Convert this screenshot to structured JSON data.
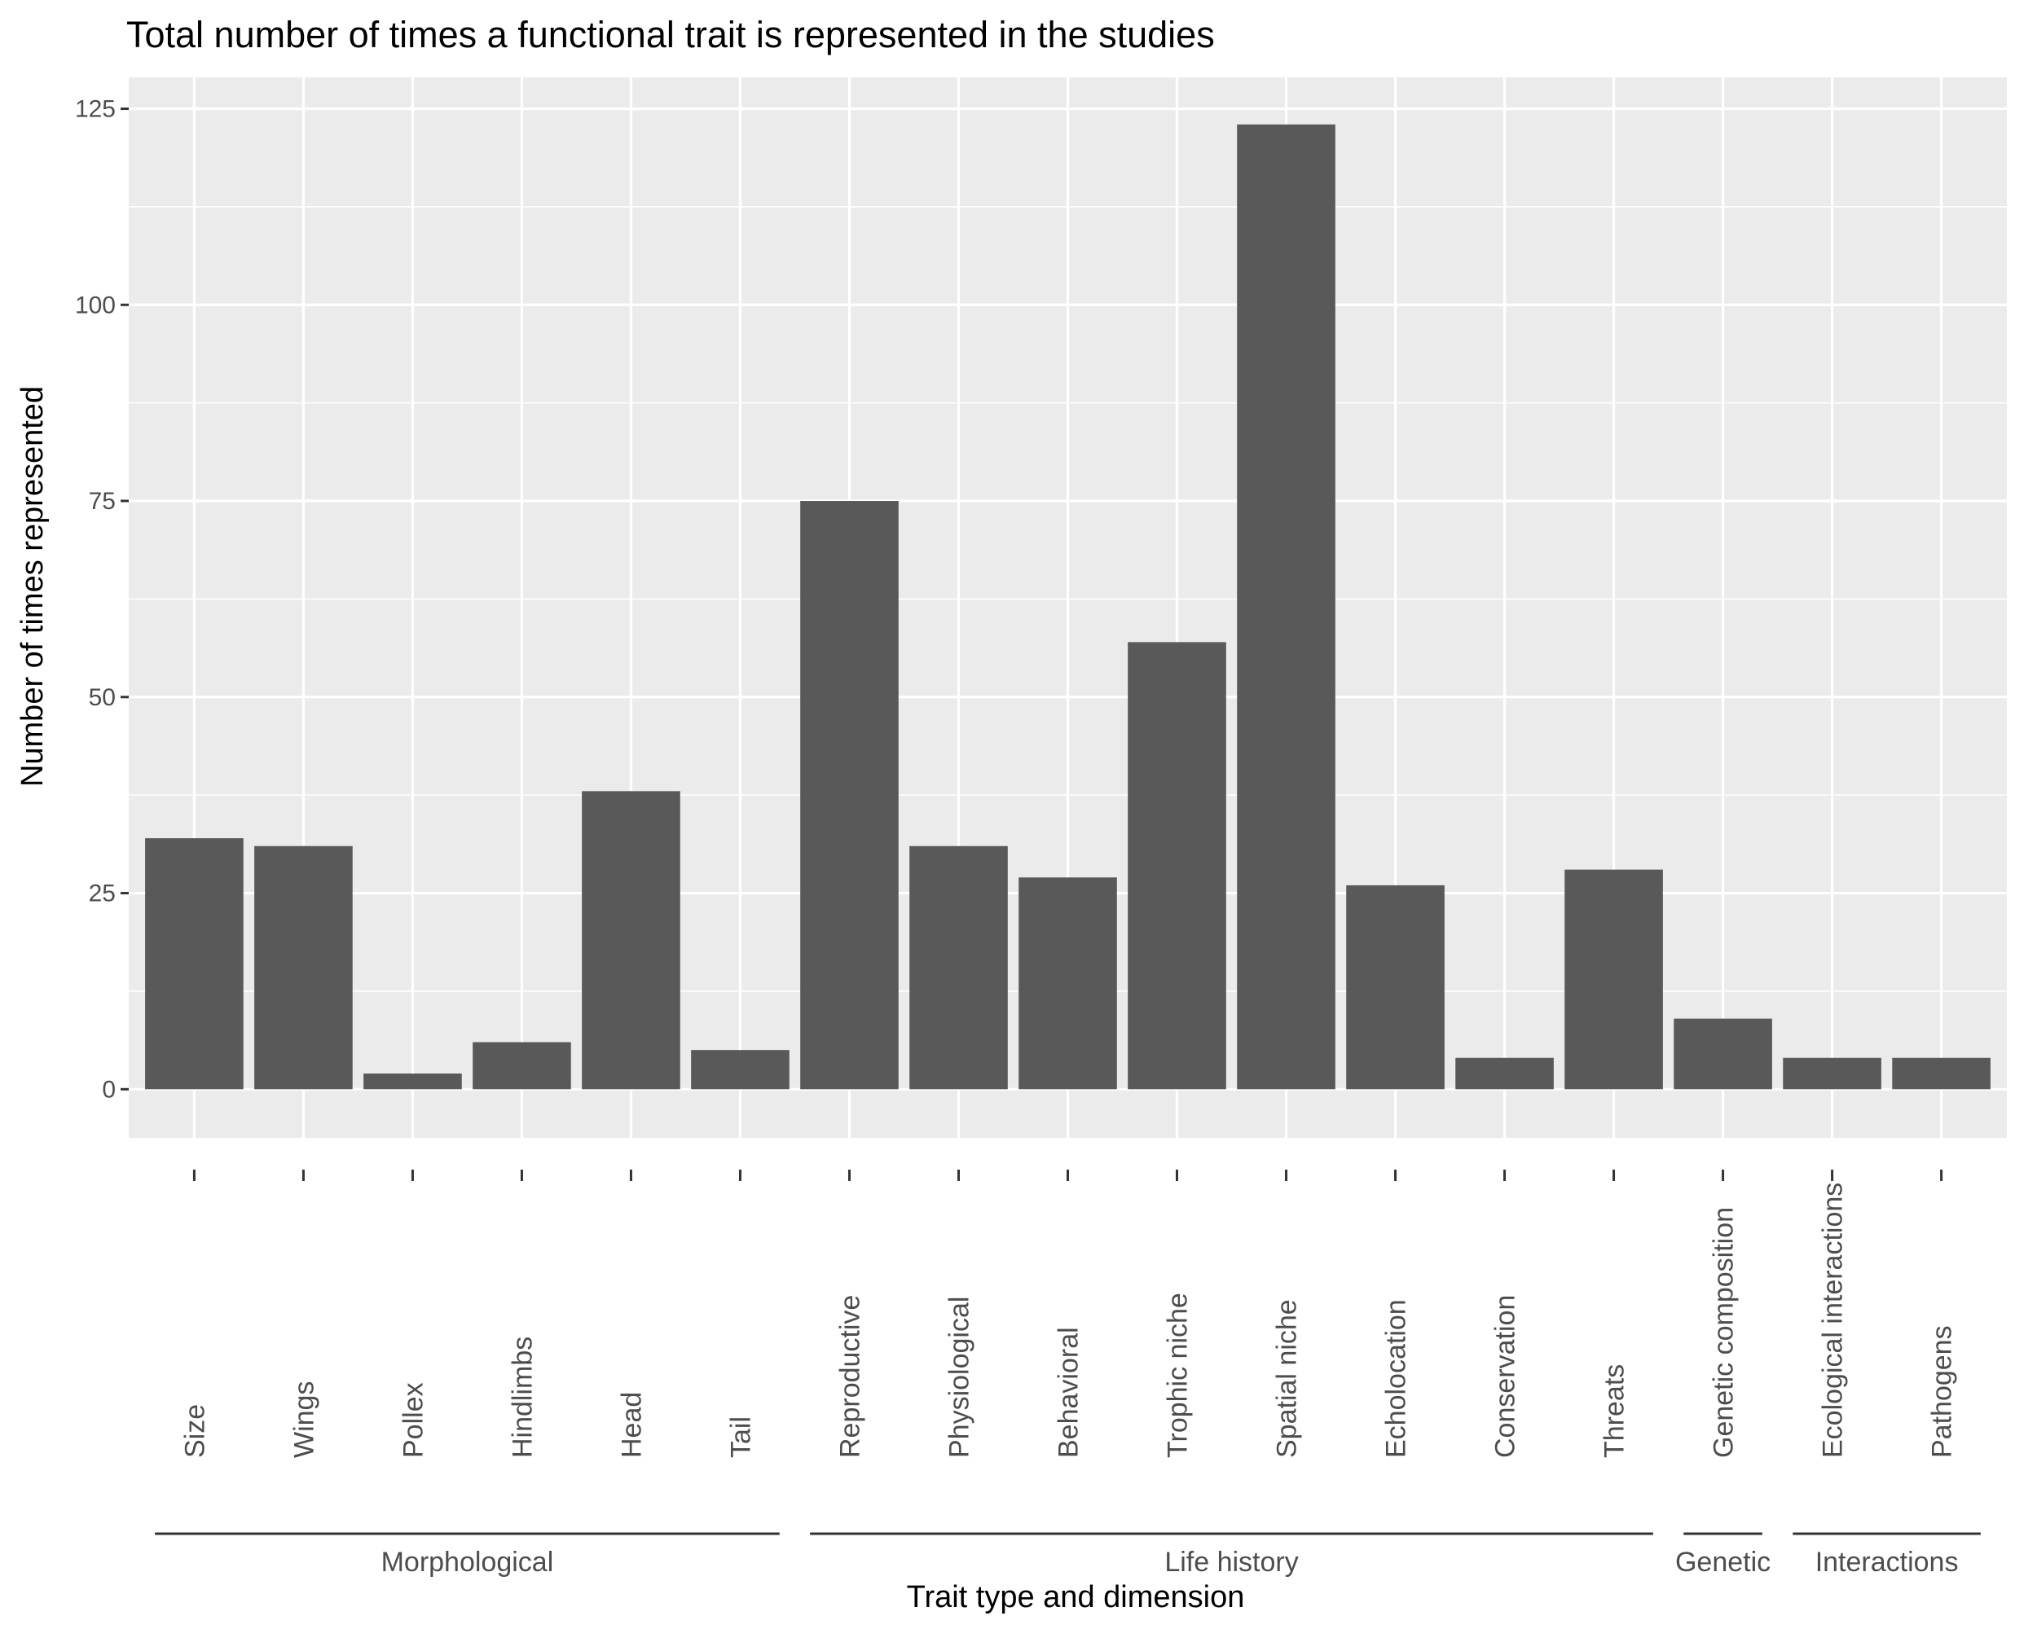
{
  "chart_data": {
    "type": "bar",
    "title": "Total number of times a functional trait is represented in the studies",
    "xlabel": "Trait type and dimension",
    "ylabel": "Number of times represented",
    "ylim": [
      -6.2,
      129
    ],
    "yticks": [
      0,
      25,
      50,
      75,
      100,
      125
    ],
    "grid": true,
    "categories": [
      "Size",
      "Wings",
      "Pollex",
      "Hindlimbs",
      "Head",
      "Tail",
      "Reproductive",
      "Physiological",
      "Behavioral",
      "Trophic niche",
      "Spatial niche",
      "Echolocation",
      "Conservation",
      "Threats",
      "Genetic composition",
      "Ecological interactions",
      "Pathogens"
    ],
    "values": [
      32,
      31,
      2,
      6,
      38,
      5,
      75,
      31,
      27,
      57,
      123,
      26,
      4,
      28,
      9,
      4,
      4
    ],
    "groups": [
      {
        "name": "Morphological",
        "categories": [
          "Size",
          "Wings",
          "Pollex",
          "Hindlimbs",
          "Head",
          "Tail"
        ]
      },
      {
        "name": "Life history",
        "categories": [
          "Reproductive",
          "Physiological",
          "Behavioral",
          "Trophic niche",
          "Spatial niche",
          "Echolocation",
          "Conservation",
          "Threats"
        ]
      },
      {
        "name": "Genetic",
        "categories": [
          "Genetic composition"
        ]
      },
      {
        "name": "Interactions",
        "categories": [
          "Ecological interactions",
          "Pathogens"
        ]
      }
    ],
    "colors": {
      "bar": "#595959",
      "panel": "#ebebeb",
      "grid": "#ffffff",
      "tick_text": "#4d4d4d",
      "bracket": "#333333"
    }
  }
}
